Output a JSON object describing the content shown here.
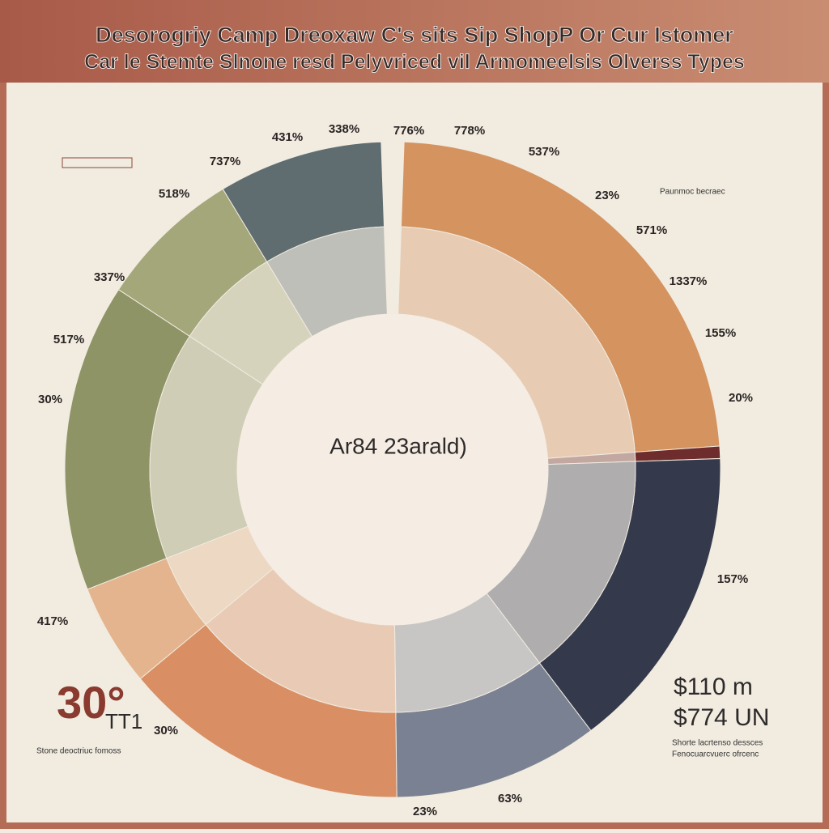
{
  "chart_data": {
    "type": "donut",
    "title": "Desorogriy Camp Dreoxaw C's sits Sip ShopP Or Cur Istomer",
    "subtitle": "Car le Stemte Slnone resd Pelyvriced vil Armomeelsis Olverss Types",
    "center_label": "Ar84 23arald)",
    "categories": [
      null,
      null,
      null,
      null,
      null,
      null,
      null,
      null,
      null
    ],
    "series": [
      {
        "values": [
          23,
          0.6,
          15,
          10,
          14,
          5,
          15,
          7,
          8
        ],
        "colors": [
          "#d4935f",
          "#6e2c2c",
          "#343a4c",
          "#7a8192",
          "#d98f63",
          "#e4b48e",
          "#8e9465",
          "#a3a77a",
          "#5f6d71"
        ]
      }
    ],
    "annotations": [
      "431%",
      "338%",
      "776%",
      "778%",
      "737%",
      "537%",
      "518%",
      "23%",
      "571%",
      "337%",
      "1337%",
      "517%",
      "155%",
      "30%",
      "20%",
      "157%",
      "417%",
      "30%",
      "23%",
      "63%"
    ],
    "callouts": [
      "30°",
      "TT1",
      "$110 m",
      "$774 UN"
    ],
    "notes": [
      "Stone deoctriuc fomoss",
      "Paunmoc becraec",
      "Shorte lacrtenso dessces",
      "Fenocuarcvuerc ofrcenc"
    ]
  }
}
